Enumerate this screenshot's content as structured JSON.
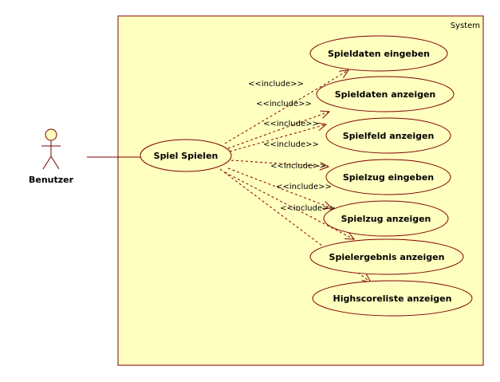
{
  "system": {
    "label": "System"
  },
  "actor": {
    "name": "Benutzer"
  },
  "main_use_case": {
    "label": "Spiel Spielen"
  },
  "use_cases": [
    {
      "label": "Spieldaten eingeben"
    },
    {
      "label": "Spieldaten anzeigen"
    },
    {
      "label": "Spielfeld anzeigen"
    },
    {
      "label": "Spielzug eingeben"
    },
    {
      "label": "Spielzug anzeigen"
    },
    {
      "label": "Spielergebnis anzeigen"
    },
    {
      "label": "Highscoreliste anzeigen"
    }
  ],
  "include_labels": [
    "<<include>>",
    "<<include>>",
    "<<include>>",
    "<<include>>",
    "<<include>>",
    "<<include>>",
    "<<include>>"
  ],
  "colors": {
    "system_fill": "#FFFFC0",
    "stroke": "#800000",
    "text": "#000000"
  }
}
